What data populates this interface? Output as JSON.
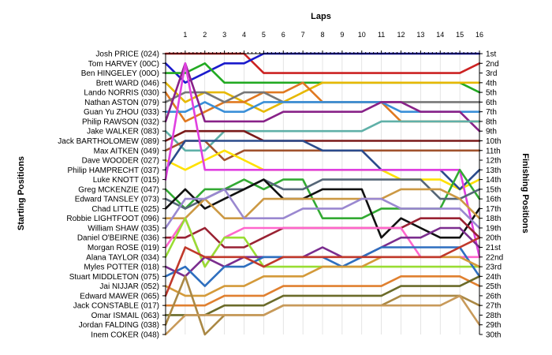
{
  "chart_data": {
    "type": "line",
    "title": "Laps",
    "ylabel_left": "Starting Positions",
    "ylabel_right": "Finishing Positions",
    "x": [
      0,
      1,
      2,
      3,
      4,
      5,
      6,
      7,
      8,
      9,
      10,
      11,
      12,
      13,
      14,
      15,
      16
    ],
    "x_tick_labels": [
      "1",
      "2",
      "3",
      "4",
      "5",
      "6",
      "7",
      "8",
      "9",
      "10",
      "11",
      "12",
      "13",
      "14",
      "15",
      "16"
    ],
    "ylim": [
      1,
      30
    ],
    "y_inverted": true,
    "grid": true,
    "start_labels": [
      "Josh PRICE (024)",
      "Tom HARVEY (00C)",
      "Ben HINGELEY (00O)",
      "Brett WARD (046)",
      "Lando NORRIS (030)",
      "Nathan ASTON (079)",
      "Guan Yu ZHOU (033)",
      "Philip RAWSON (032)",
      "Jake WALKER (083)",
      "Jack BARTHOLOMEW (089)",
      "Max AITKEN (049)",
      "Dave WOODER (027)",
      "Philip HAMPRECHT (037)",
      "Luke KNOTT (015)",
      "Greg MCKENZIE (047)",
      "Edward TANSLEY (073)",
      "Chad LITTLE (025)",
      "Robbie LIGHTFOOT (096)",
      "William SHAW (035)",
      "Daniel O'BEIRNE (036)",
      "Morgan ROSE (019)",
      "Alana TAYLOR (034)",
      "Myles POTTER (018)",
      "Stuart MIDDLETON (075)",
      "Jai NIJJAR (052)",
      "Edward MAWER (065)",
      "Jack CONSTABLE (017)",
      "Omar ISMAIL (063)",
      "Jordan FALDING (038)",
      "Inem COKER (048)"
    ],
    "finish_labels": [
      "1st",
      "2nd",
      "3rd",
      "4th",
      "5th",
      "6th",
      "7th",
      "8th",
      "9th",
      "10th",
      "11th",
      "12th",
      "13th",
      "14th",
      "15th",
      "16th",
      "17th",
      "18th",
      "19th",
      "20th",
      "21st",
      "22nd",
      "23rd",
      "24th",
      "25th",
      "26th",
      "27th",
      "28th",
      "29th",
      "30th"
    ],
    "series": [
      {
        "color": "#cc2222",
        "values": [
          1,
          1,
          1,
          1,
          1,
          3,
          3,
          3,
          3,
          3,
          3,
          3,
          3,
          3,
          3,
          3,
          2
        ]
      },
      {
        "color": "#1a1acc",
        "values": [
          2,
          4,
          3,
          2,
          2,
          1,
          1,
          1,
          1,
          1,
          1,
          1,
          1,
          1,
          1,
          1,
          1
        ]
      },
      {
        "color": "#22aa22",
        "values": [
          3,
          3,
          2,
          4,
          4,
          4,
          4,
          4,
          4,
          4,
          4,
          4,
          4,
          4,
          4,
          4,
          5
        ]
      },
      {
        "color": "#e6b800",
        "values": [
          4,
          6,
          5,
          5,
          6,
          7,
          6,
          5,
          4,
          4,
          4,
          4,
          4,
          4,
          4,
          4,
          4
        ]
      },
      {
        "color": "#e07820",
        "values": [
          5,
          8,
          7,
          6,
          6,
          5,
          5,
          4,
          6,
          6,
          6,
          6,
          8,
          8,
          8,
          8,
          8
        ]
      },
      {
        "color": "#777777",
        "values": [
          6,
          5,
          5,
          6,
          5,
          5,
          6,
          6,
          6,
          6,
          6,
          6,
          6,
          6,
          6,
          6,
          6
        ]
      },
      {
        "color": "#3a8fd8",
        "values": [
          7,
          7,
          6,
          7,
          7,
          6,
          6,
          6,
          6,
          6,
          6,
          6,
          7,
          7,
          7,
          7,
          7
        ]
      },
      {
        "color": "#882288",
        "values": [
          8,
          2,
          8,
          8,
          8,
          8,
          7,
          7,
          7,
          7,
          7,
          6,
          6,
          7,
          7,
          7,
          9
        ]
      },
      {
        "color": "#5fb0a8",
        "values": [
          9,
          11,
          11,
          9,
          9,
          9,
          9,
          9,
          9,
          9,
          9,
          8,
          8,
          8,
          8,
          8,
          8
        ]
      },
      {
        "color": "#7a1a1a",
        "values": [
          10,
          9,
          9,
          9,
          9,
          10,
          10,
          10,
          10,
          10,
          10,
          10,
          10,
          10,
          10,
          10,
          10
        ]
      },
      {
        "color": "#a0522d",
        "values": [
          11,
          10,
          10,
          12,
          11,
          11,
          11,
          11,
          11,
          11,
          11,
          11,
          11,
          11,
          11,
          11,
          11
        ]
      },
      {
        "color": "#ffe100",
        "values": [
          12,
          13,
          12,
          11,
          12,
          13,
          13,
          13,
          13,
          13,
          13,
          13,
          14,
          14,
          14,
          15,
          14
        ]
      },
      {
        "color": "#2b4b8c",
        "values": [
          13,
          10,
          10,
          10,
          10,
          10,
          10,
          10,
          11,
          11,
          11,
          13,
          13,
          13,
          13,
          15,
          13
        ]
      },
      {
        "color": "#e040e0",
        "values": [
          14,
          2,
          13,
          13,
          13,
          13,
          13,
          13,
          13,
          13,
          13,
          13,
          13,
          13,
          13,
          13,
          22
        ]
      },
      {
        "color": "#33aa33",
        "values": [
          15,
          17,
          15,
          15,
          14,
          15,
          14,
          14,
          18,
          18,
          18,
          17,
          17,
          17,
          17,
          13,
          16
        ]
      },
      {
        "color": "#556677",
        "values": [
          16,
          17,
          16,
          15,
          15,
          14,
          15,
          15,
          14,
          14,
          14,
          14,
          14,
          14,
          16,
          16,
          15
        ]
      },
      {
        "color": "#111111",
        "values": [
          17,
          15,
          17,
          16,
          15,
          14,
          16,
          16,
          15,
          15,
          15,
          20,
          18,
          19,
          20,
          20,
          17
        ]
      },
      {
        "color": "#cc9944",
        "values": [
          18,
          18,
          16,
          18,
          18,
          16,
          16,
          16,
          16,
          16,
          16,
          16,
          15,
          15,
          15,
          16,
          18
        ]
      },
      {
        "color": "#9a88d0",
        "values": [
          19,
          16,
          16,
          15,
          18,
          18,
          18,
          17,
          17,
          17,
          16,
          16,
          17,
          17,
          17,
          17,
          19
        ]
      },
      {
        "color": "#992233",
        "values": [
          20,
          20,
          19,
          21,
          21,
          20,
          19,
          19,
          19,
          19,
          19,
          19,
          19,
          18,
          18,
          18,
          20
        ]
      },
      {
        "color": "#ff66cc",
        "values": [
          21,
          18,
          23,
          20,
          19,
          19,
          19,
          19,
          19,
          19,
          19,
          19,
          19,
          22,
          22,
          22,
          22
        ]
      },
      {
        "color": "#99dd33",
        "values": [
          22,
          18,
          23,
          20,
          20,
          23,
          23,
          23,
          23,
          23,
          23,
          23,
          23,
          23,
          23,
          23,
          23
        ]
      },
      {
        "color": "#7b2d8e",
        "values": [
          23,
          24,
          22,
          23,
          22,
          22,
          22,
          22,
          21,
          22,
          22,
          21,
          20,
          20,
          19,
          19,
          21
        ]
      },
      {
        "color": "#2e6fbf",
        "values": [
          24,
          23,
          25,
          23,
          23,
          22,
          22,
          22,
          22,
          23,
          22,
          21,
          21,
          21,
          21,
          21,
          24
        ]
      },
      {
        "color": "#d49a3a",
        "values": [
          25,
          26,
          26,
          25,
          25,
          24,
          24,
          24,
          23,
          23,
          23,
          22,
          22,
          22,
          22,
          22,
          23
        ]
      },
      {
        "color": "#c0392b",
        "values": [
          26,
          21,
          22,
          22,
          22,
          23,
          22,
          22,
          22,
          22,
          22,
          22,
          22,
          22,
          22,
          21,
          20
        ]
      },
      {
        "color": "#e08030",
        "values": [
          27,
          27,
          27,
          26,
          26,
          26,
          25,
          25,
          25,
          25,
          25,
          25,
          24,
          24,
          24,
          24,
          25
        ]
      },
      {
        "color": "#6b6b2a",
        "values": [
          28,
          28,
          28,
          27,
          27,
          27,
          26,
          26,
          26,
          26,
          26,
          26,
          25,
          25,
          25,
          25,
          24
        ]
      },
      {
        "color": "#aa8844",
        "values": [
          29,
          24,
          30,
          28,
          28,
          28,
          27,
          27,
          27,
          27,
          27,
          27,
          26,
          26,
          26,
          26,
          27
        ]
      },
      {
        "color": "#c89a5a",
        "values": [
          30,
          28,
          28,
          28,
          28,
          28,
          27,
          27,
          27,
          27,
          27,
          27,
          27,
          27,
          27,
          26,
          29
        ]
      }
    ]
  }
}
